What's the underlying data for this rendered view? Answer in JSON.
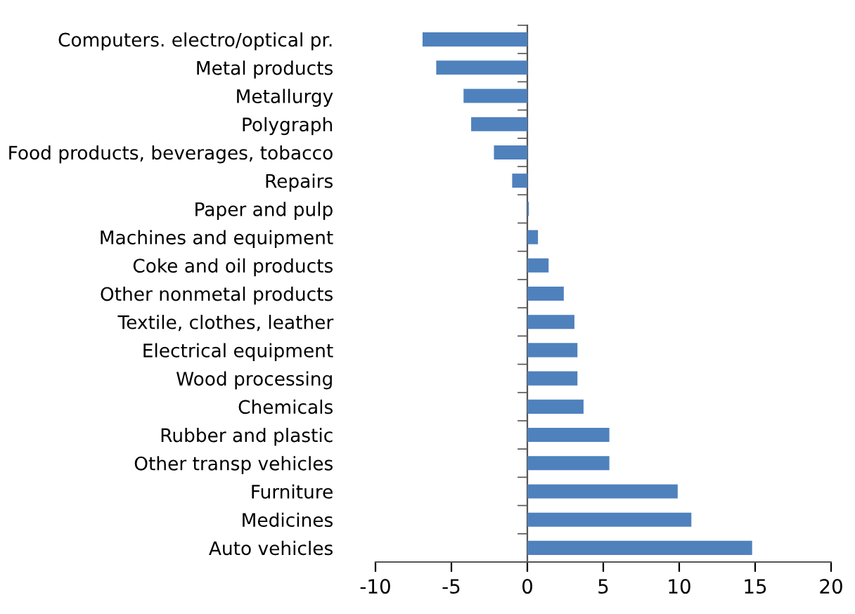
{
  "chart_data": {
    "type": "bar",
    "orientation": "horizontal",
    "categories": [
      "Computers. electro/optical pr.",
      "Metal products",
      "Metallurgy",
      "Polygraph",
      "Food products, beverages, tobacco",
      "Repairs",
      "Paper and pulp",
      "Machines and equipment",
      "Coke and oil products",
      "Other nonmetal products",
      "Textile, clothes, leather",
      "Electrical equipment",
      "Wood processing",
      "Chemicals",
      "Rubber and plastic",
      "Other transp vehicles",
      "Furniture",
      "Medicines",
      "Auto vehicles"
    ],
    "values": [
      -6.9,
      -6.0,
      -4.2,
      -3.7,
      -2.2,
      -1.0,
      0.1,
      0.7,
      1.4,
      2.4,
      3.1,
      3.3,
      3.3,
      3.7,
      5.4,
      5.4,
      9.9,
      10.8,
      14.8
    ],
    "color": "#4f81bd",
    "xlim": [
      -10,
      20
    ],
    "xticks": [
      -10,
      -5,
      0,
      5,
      10,
      15,
      20
    ]
  }
}
